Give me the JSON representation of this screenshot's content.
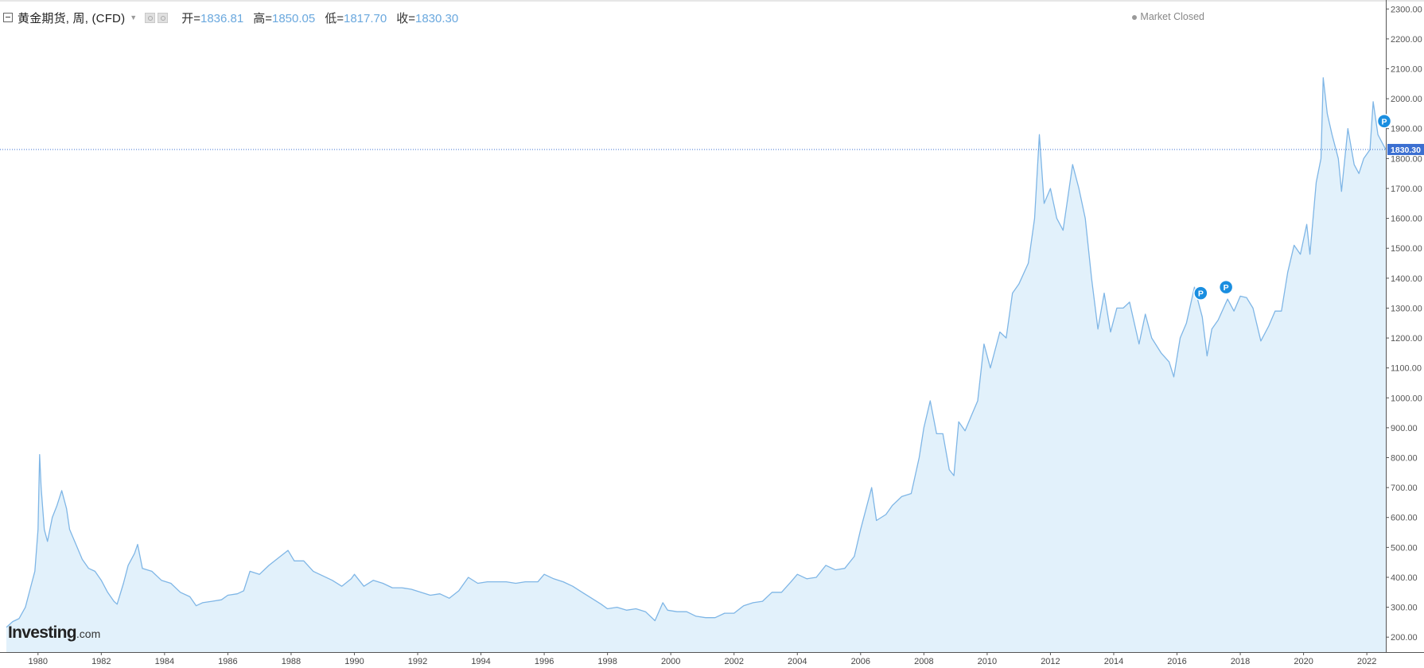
{
  "header": {
    "symbol_title": "黄金期货, 周, (CFD)",
    "open_label": "开=",
    "open_value": "1836.81",
    "high_label": "高=",
    "high_value": "1850.05",
    "low_label": "低=",
    "low_value": "1817.70",
    "close_label": "收=",
    "close_value": "1830.30"
  },
  "market_status": "Market Closed",
  "logo": {
    "name": "Investing",
    "suffix": ".com"
  },
  "colors": {
    "line": "#7fb6e6",
    "area": "#e2f1fb",
    "price_marker": "#3b6fd1",
    "event_marker": "#1a8ee0"
  },
  "chart_data": {
    "type": "area",
    "title": "黄金期货, 周, (CFD)",
    "xlabel": "",
    "ylabel": "",
    "xlim": [
      1979.0,
      2022.6
    ],
    "ylim": [
      150,
      2330
    ],
    "grid": false,
    "x_ticks": [
      "1980",
      "1982",
      "1984",
      "1986",
      "1988",
      "1990",
      "1992",
      "1994",
      "1996",
      "1998",
      "2000",
      "2002",
      "2004",
      "2006",
      "2008",
      "2010",
      "2012",
      "2014",
      "2016",
      "2018",
      "2020",
      "2022"
    ],
    "y_ticks": [
      "200.00",
      "300.00",
      "400.00",
      "500.00",
      "600.00",
      "700.00",
      "800.00",
      "900.00",
      "1000.00",
      "1100.00",
      "1200.00",
      "1300.00",
      "1400.00",
      "1500.00",
      "1600.00",
      "1700.00",
      "1800.00",
      "1900.00",
      "2000.00",
      "2100.00",
      "2200.00",
      "2300.00"
    ],
    "last_price": 1830.3,
    "last_price_label": "1830.30",
    "event_marker_label": "P",
    "event_markers": [
      {
        "x": 2016.75,
        "y": 1350
      },
      {
        "x": 2017.55,
        "y": 1370
      },
      {
        "x": 2022.55,
        "y": 1925
      }
    ],
    "series": [
      {
        "name": "黄金期货",
        "points": [
          [
            1979.0,
            233
          ],
          [
            1979.2,
            252
          ],
          [
            1979.4,
            262
          ],
          [
            1979.6,
            300
          ],
          [
            1979.8,
            380
          ],
          [
            1979.9,
            420
          ],
          [
            1980.0,
            560
          ],
          [
            1980.05,
            810
          ],
          [
            1980.1,
            700
          ],
          [
            1980.2,
            560
          ],
          [
            1980.3,
            520
          ],
          [
            1980.45,
            600
          ],
          [
            1980.6,
            640
          ],
          [
            1980.75,
            690
          ],
          [
            1980.9,
            630
          ],
          [
            1981.0,
            560
          ],
          [
            1981.2,
            510
          ],
          [
            1981.4,
            460
          ],
          [
            1981.6,
            430
          ],
          [
            1981.8,
            420
          ],
          [
            1982.0,
            390
          ],
          [
            1982.2,
            350
          ],
          [
            1982.4,
            320
          ],
          [
            1982.5,
            310
          ],
          [
            1982.7,
            380
          ],
          [
            1982.85,
            440
          ],
          [
            1983.05,
            480
          ],
          [
            1983.15,
            510
          ],
          [
            1983.3,
            430
          ],
          [
            1983.6,
            420
          ],
          [
            1983.9,
            390
          ],
          [
            1984.2,
            380
          ],
          [
            1984.5,
            350
          ],
          [
            1984.8,
            335
          ],
          [
            1985.0,
            305
          ],
          [
            1985.2,
            315
          ],
          [
            1985.5,
            320
          ],
          [
            1985.8,
            325
          ],
          [
            1986.0,
            340
          ],
          [
            1986.3,
            345
          ],
          [
            1986.5,
            355
          ],
          [
            1986.7,
            420
          ],
          [
            1987.0,
            410
          ],
          [
            1987.3,
            440
          ],
          [
            1987.6,
            465
          ],
          [
            1987.9,
            490
          ],
          [
            1988.1,
            455
          ],
          [
            1988.4,
            455
          ],
          [
            1988.7,
            420
          ],
          [
            1989.0,
            405
          ],
          [
            1989.3,
            390
          ],
          [
            1989.6,
            370
          ],
          [
            1989.9,
            395
          ],
          [
            1990.0,
            410
          ],
          [
            1990.3,
            370
          ],
          [
            1990.6,
            390
          ],
          [
            1990.9,
            380
          ],
          [
            1991.2,
            365
          ],
          [
            1991.5,
            365
          ],
          [
            1991.8,
            360
          ],
          [
            1992.1,
            350
          ],
          [
            1992.4,
            340
          ],
          [
            1992.7,
            345
          ],
          [
            1993.0,
            330
          ],
          [
            1993.3,
            355
          ],
          [
            1993.6,
            400
          ],
          [
            1993.9,
            380
          ],
          [
            1994.2,
            385
          ],
          [
            1994.5,
            385
          ],
          [
            1994.8,
            385
          ],
          [
            1995.1,
            380
          ],
          [
            1995.4,
            385
          ],
          [
            1995.8,
            385
          ],
          [
            1996.0,
            410
          ],
          [
            1996.3,
            395
          ],
          [
            1996.6,
            385
          ],
          [
            1996.9,
            370
          ],
          [
            1997.2,
            350
          ],
          [
            1997.5,
            330
          ],
          [
            1997.8,
            310
          ],
          [
            1998.0,
            295
          ],
          [
            1998.3,
            300
          ],
          [
            1998.6,
            290
          ],
          [
            1998.9,
            295
          ],
          [
            1999.2,
            285
          ],
          [
            1999.5,
            255
          ],
          [
            1999.75,
            315
          ],
          [
            1999.9,
            290
          ],
          [
            2000.2,
            285
          ],
          [
            2000.5,
            285
          ],
          [
            2000.8,
            270
          ],
          [
            2001.1,
            265
          ],
          [
            2001.4,
            265
          ],
          [
            2001.7,
            280
          ],
          [
            2002.0,
            280
          ],
          [
            2002.3,
            305
          ],
          [
            2002.6,
            315
          ],
          [
            2002.9,
            320
          ],
          [
            2003.2,
            350
          ],
          [
            2003.5,
            350
          ],
          [
            2003.8,
            385
          ],
          [
            2004.0,
            410
          ],
          [
            2004.3,
            395
          ],
          [
            2004.6,
            400
          ],
          [
            2004.9,
            440
          ],
          [
            2005.2,
            425
          ],
          [
            2005.5,
            430
          ],
          [
            2005.8,
            470
          ],
          [
            2006.0,
            560
          ],
          [
            2006.35,
            700
          ],
          [
            2006.5,
            590
          ],
          [
            2006.8,
            610
          ],
          [
            2007.0,
            640
          ],
          [
            2007.3,
            670
          ],
          [
            2007.6,
            680
          ],
          [
            2007.85,
            800
          ],
          [
            2008.0,
            900
          ],
          [
            2008.2,
            990
          ],
          [
            2008.4,
            880
          ],
          [
            2008.6,
            880
          ],
          [
            2008.8,
            760
          ],
          [
            2008.95,
            740
          ],
          [
            2009.1,
            920
          ],
          [
            2009.3,
            890
          ],
          [
            2009.5,
            940
          ],
          [
            2009.7,
            990
          ],
          [
            2009.9,
            1180
          ],
          [
            2010.1,
            1100
          ],
          [
            2010.4,
            1220
          ],
          [
            2010.6,
            1200
          ],
          [
            2010.8,
            1350
          ],
          [
            2011.0,
            1380
          ],
          [
            2011.3,
            1450
          ],
          [
            2011.5,
            1600
          ],
          [
            2011.65,
            1880
          ],
          [
            2011.8,
            1650
          ],
          [
            2012.0,
            1700
          ],
          [
            2012.2,
            1600
          ],
          [
            2012.4,
            1560
          ],
          [
            2012.7,
            1780
          ],
          [
            2012.9,
            1700
          ],
          [
            2013.1,
            1600
          ],
          [
            2013.3,
            1400
          ],
          [
            2013.5,
            1230
          ],
          [
            2013.7,
            1350
          ],
          [
            2013.9,
            1220
          ],
          [
            2014.1,
            1300
          ],
          [
            2014.3,
            1300
          ],
          [
            2014.5,
            1320
          ],
          [
            2014.8,
            1180
          ],
          [
            2015.0,
            1280
          ],
          [
            2015.2,
            1200
          ],
          [
            2015.5,
            1150
          ],
          [
            2015.75,
            1120
          ],
          [
            2015.9,
            1070
          ],
          [
            2016.1,
            1200
          ],
          [
            2016.3,
            1250
          ],
          [
            2016.55,
            1370
          ],
          [
            2016.8,
            1270
          ],
          [
            2016.95,
            1140
          ],
          [
            2017.1,
            1230
          ],
          [
            2017.3,
            1260
          ],
          [
            2017.6,
            1330
          ],
          [
            2017.8,
            1290
          ],
          [
            2018.0,
            1340
          ],
          [
            2018.2,
            1335
          ],
          [
            2018.4,
            1300
          ],
          [
            2018.65,
            1190
          ],
          [
            2018.9,
            1240
          ],
          [
            2019.1,
            1290
          ],
          [
            2019.3,
            1290
          ],
          [
            2019.5,
            1420
          ],
          [
            2019.7,
            1510
          ],
          [
            2019.9,
            1480
          ],
          [
            2020.1,
            1580
          ],
          [
            2020.2,
            1480
          ],
          [
            2020.4,
            1720
          ],
          [
            2020.55,
            1800
          ],
          [
            2020.62,
            2070
          ],
          [
            2020.75,
            1950
          ],
          [
            2020.9,
            1880
          ],
          [
            2021.1,
            1800
          ],
          [
            2021.2,
            1690
          ],
          [
            2021.4,
            1900
          ],
          [
            2021.6,
            1780
          ],
          [
            2021.75,
            1750
          ],
          [
            2021.9,
            1800
          ],
          [
            2022.1,
            1830
          ],
          [
            2022.2,
            1990
          ],
          [
            2022.35,
            1880
          ],
          [
            2022.5,
            1850
          ],
          [
            2022.6,
            1830
          ]
        ]
      }
    ]
  }
}
